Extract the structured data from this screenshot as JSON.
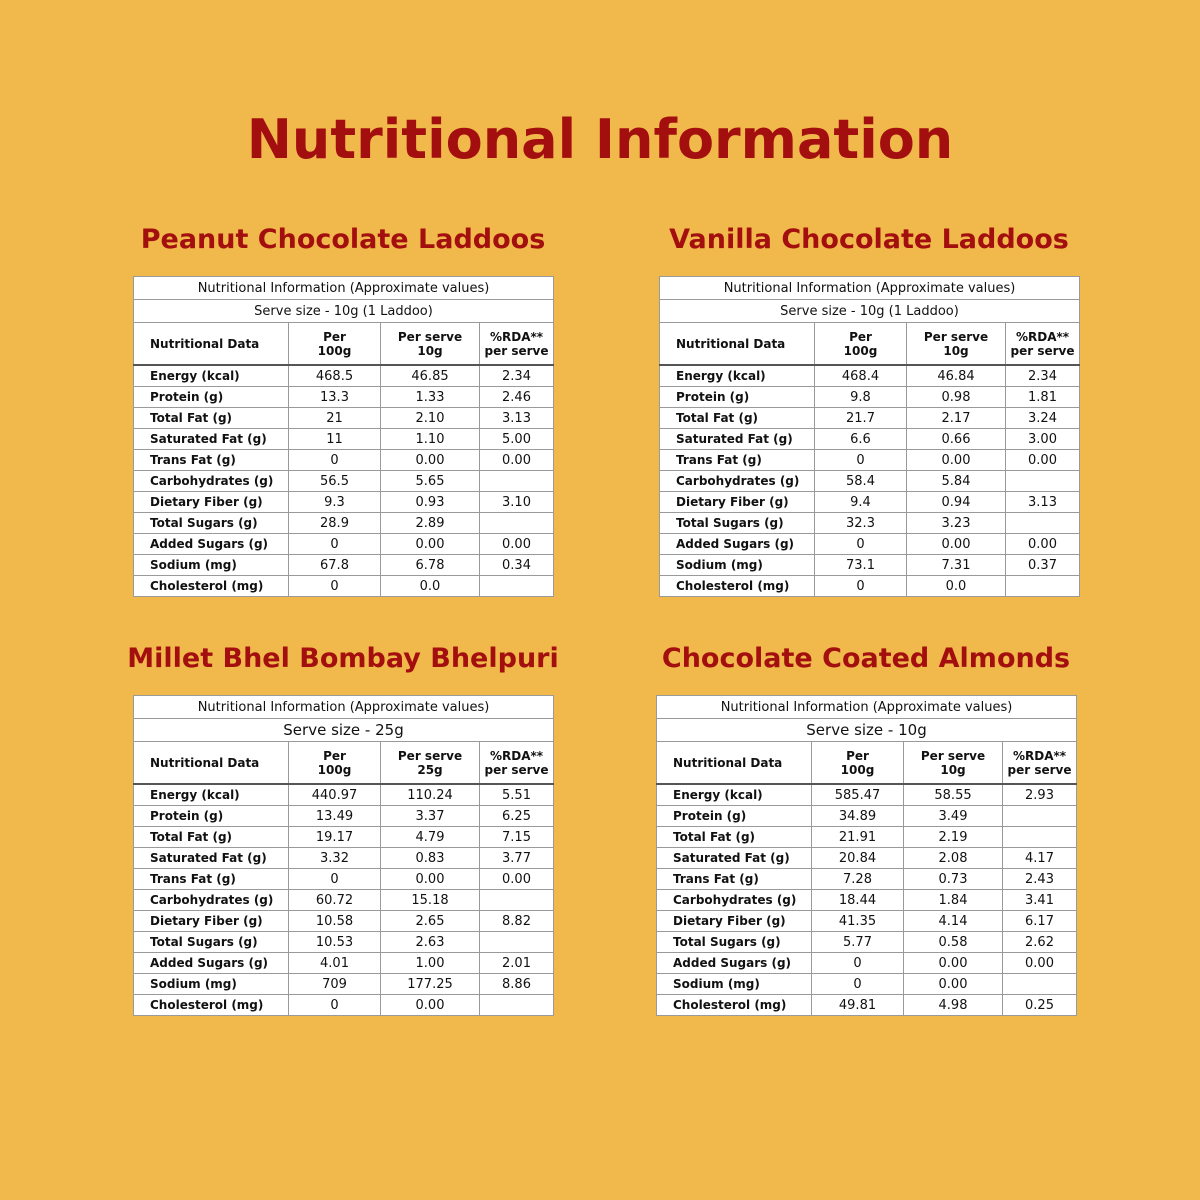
{
  "title": "Nutritional Information",
  "products": [
    {
      "name": "Peanut Chocolate Laddoos",
      "caption": "Nutritional Information (Approximate values)",
      "serve": "Serve size - 10g (1 Laddoo)",
      "headers": [
        "Nutritional Data",
        "Per\n100g",
        "Per serve\n10g",
        "%RDA**\nper serve"
      ],
      "rows": [
        [
          "Energy (kcal)",
          "468.5",
          "46.85",
          "2.34"
        ],
        [
          "Protein (g)",
          "13.3",
          "1.33",
          "2.46"
        ],
        [
          "Total Fat (g)",
          "21",
          "2.10",
          "3.13"
        ],
        [
          "Saturated Fat (g)",
          "11",
          "1.10",
          "5.00"
        ],
        [
          "Trans Fat (g)",
          "0",
          "0.00",
          "0.00"
        ],
        [
          "Carbohydrates (g)",
          "56.5",
          "5.65",
          null
        ],
        [
          "Dietary Fiber (g)",
          "9.3",
          "0.93",
          "3.10"
        ],
        [
          "Total Sugars (g)",
          "28.9",
          "2.89",
          null
        ],
        [
          "Added Sugars (g)",
          "0",
          "0.00",
          "0.00"
        ],
        [
          "Sodium (mg)",
          "67.8",
          "6.78",
          "0.34"
        ],
        [
          "Cholesterol (mg)",
          "0",
          "0.0",
          null
        ]
      ]
    },
    {
      "name": "Vanilla Chocolate Laddoos",
      "caption": "Nutritional Information (Approximate values)",
      "serve": "Serve size - 10g (1 Laddoo)",
      "headers": [
        "Nutritional Data",
        "Per\n100g",
        "Per serve\n10g",
        "%RDA**\nper serve"
      ],
      "rows": [
        [
          "Energy (kcal)",
          "468.4",
          "46.84",
          "2.34"
        ],
        [
          "Protein (g)",
          "9.8",
          "0.98",
          "1.81"
        ],
        [
          "Total Fat (g)",
          "21.7",
          "2.17",
          "3.24"
        ],
        [
          "Saturated Fat (g)",
          "6.6",
          "0.66",
          "3.00"
        ],
        [
          "Trans Fat (g)",
          "0",
          "0.00",
          "0.00"
        ],
        [
          "Carbohydrates (g)",
          "58.4",
          "5.84",
          null
        ],
        [
          "Dietary Fiber (g)",
          "9.4",
          "0.94",
          "3.13"
        ],
        [
          "Total Sugars (g)",
          "32.3",
          "3.23",
          null
        ],
        [
          "Added Sugars (g)",
          "0",
          "0.00",
          "0.00"
        ],
        [
          "Sodium (mg)",
          "73.1",
          "7.31",
          "0.37"
        ],
        [
          "Cholesterol (mg)",
          "0",
          "0.0",
          null
        ]
      ]
    },
    {
      "name": "Millet Bhel Bombay Bhelpuri",
      "caption": "Nutritional Information (Approximate values)",
      "serve": "Serve size - 25g",
      "headers": [
        "Nutritional Data",
        "Per\n100g",
        "Per serve\n25g",
        "%RDA**\nper serve"
      ],
      "rows": [
        [
          "Energy (kcal)",
          "440.97",
          "110.24",
          "5.51"
        ],
        [
          "Protein (g)",
          "13.49",
          "3.37",
          "6.25"
        ],
        [
          "Total Fat (g)",
          "19.17",
          "4.79",
          "7.15"
        ],
        [
          "Saturated Fat (g)",
          "3.32",
          "0.83",
          "3.77"
        ],
        [
          "Trans Fat (g)",
          "0",
          "0.00",
          "0.00"
        ],
        [
          "Carbohydrates (g)",
          "60.72",
          "15.18",
          null
        ],
        [
          "Dietary Fiber (g)",
          "10.58",
          "2.65",
          "8.82"
        ],
        [
          "Total Sugars (g)",
          "10.53",
          "2.63",
          null
        ],
        [
          "Added Sugars (g)",
          "4.01",
          "1.00",
          "2.01"
        ],
        [
          "Sodium (mg)",
          "709",
          "177.25",
          "8.86"
        ],
        [
          "Cholesterol (mg)",
          "0",
          "0.00",
          null
        ]
      ]
    },
    {
      "name": "Chocolate Coated Almonds",
      "caption": "Nutritional Information (Approximate values)",
      "serve": "Serve size - 10g",
      "headers": [
        "Nutritional Data",
        "Per\n100g",
        "Per serve\n10g",
        "%RDA**\nper serve"
      ],
      "rows": [
        [
          "Energy (kcal)",
          "585.47",
          "58.55",
          "2.93"
        ],
        [
          "Protein (g)",
          "34.89",
          "3.49",
          null
        ],
        [
          "Total Fat (g)",
          "21.91",
          "2.19",
          null
        ],
        [
          "Saturated Fat (g)",
          "20.84",
          "2.08",
          "4.17"
        ],
        [
          "Trans Fat (g)",
          "7.28",
          "0.73",
          "2.43"
        ],
        [
          "Carbohydrates (g)",
          "18.44",
          "1.84",
          "3.41"
        ],
        [
          "Dietary Fiber (g)",
          "41.35",
          "4.14",
          "6.17"
        ],
        [
          "Total Sugars (g)",
          "5.77",
          "0.58",
          "2.62"
        ],
        [
          "Added Sugars (g)",
          "0",
          "0.00",
          "0.00"
        ],
        [
          "Sodium (mg)",
          "0",
          "0.00",
          null
        ],
        [
          "Cholesterol (mg)",
          "49.81",
          "4.98",
          "0.25"
        ]
      ]
    }
  ]
}
